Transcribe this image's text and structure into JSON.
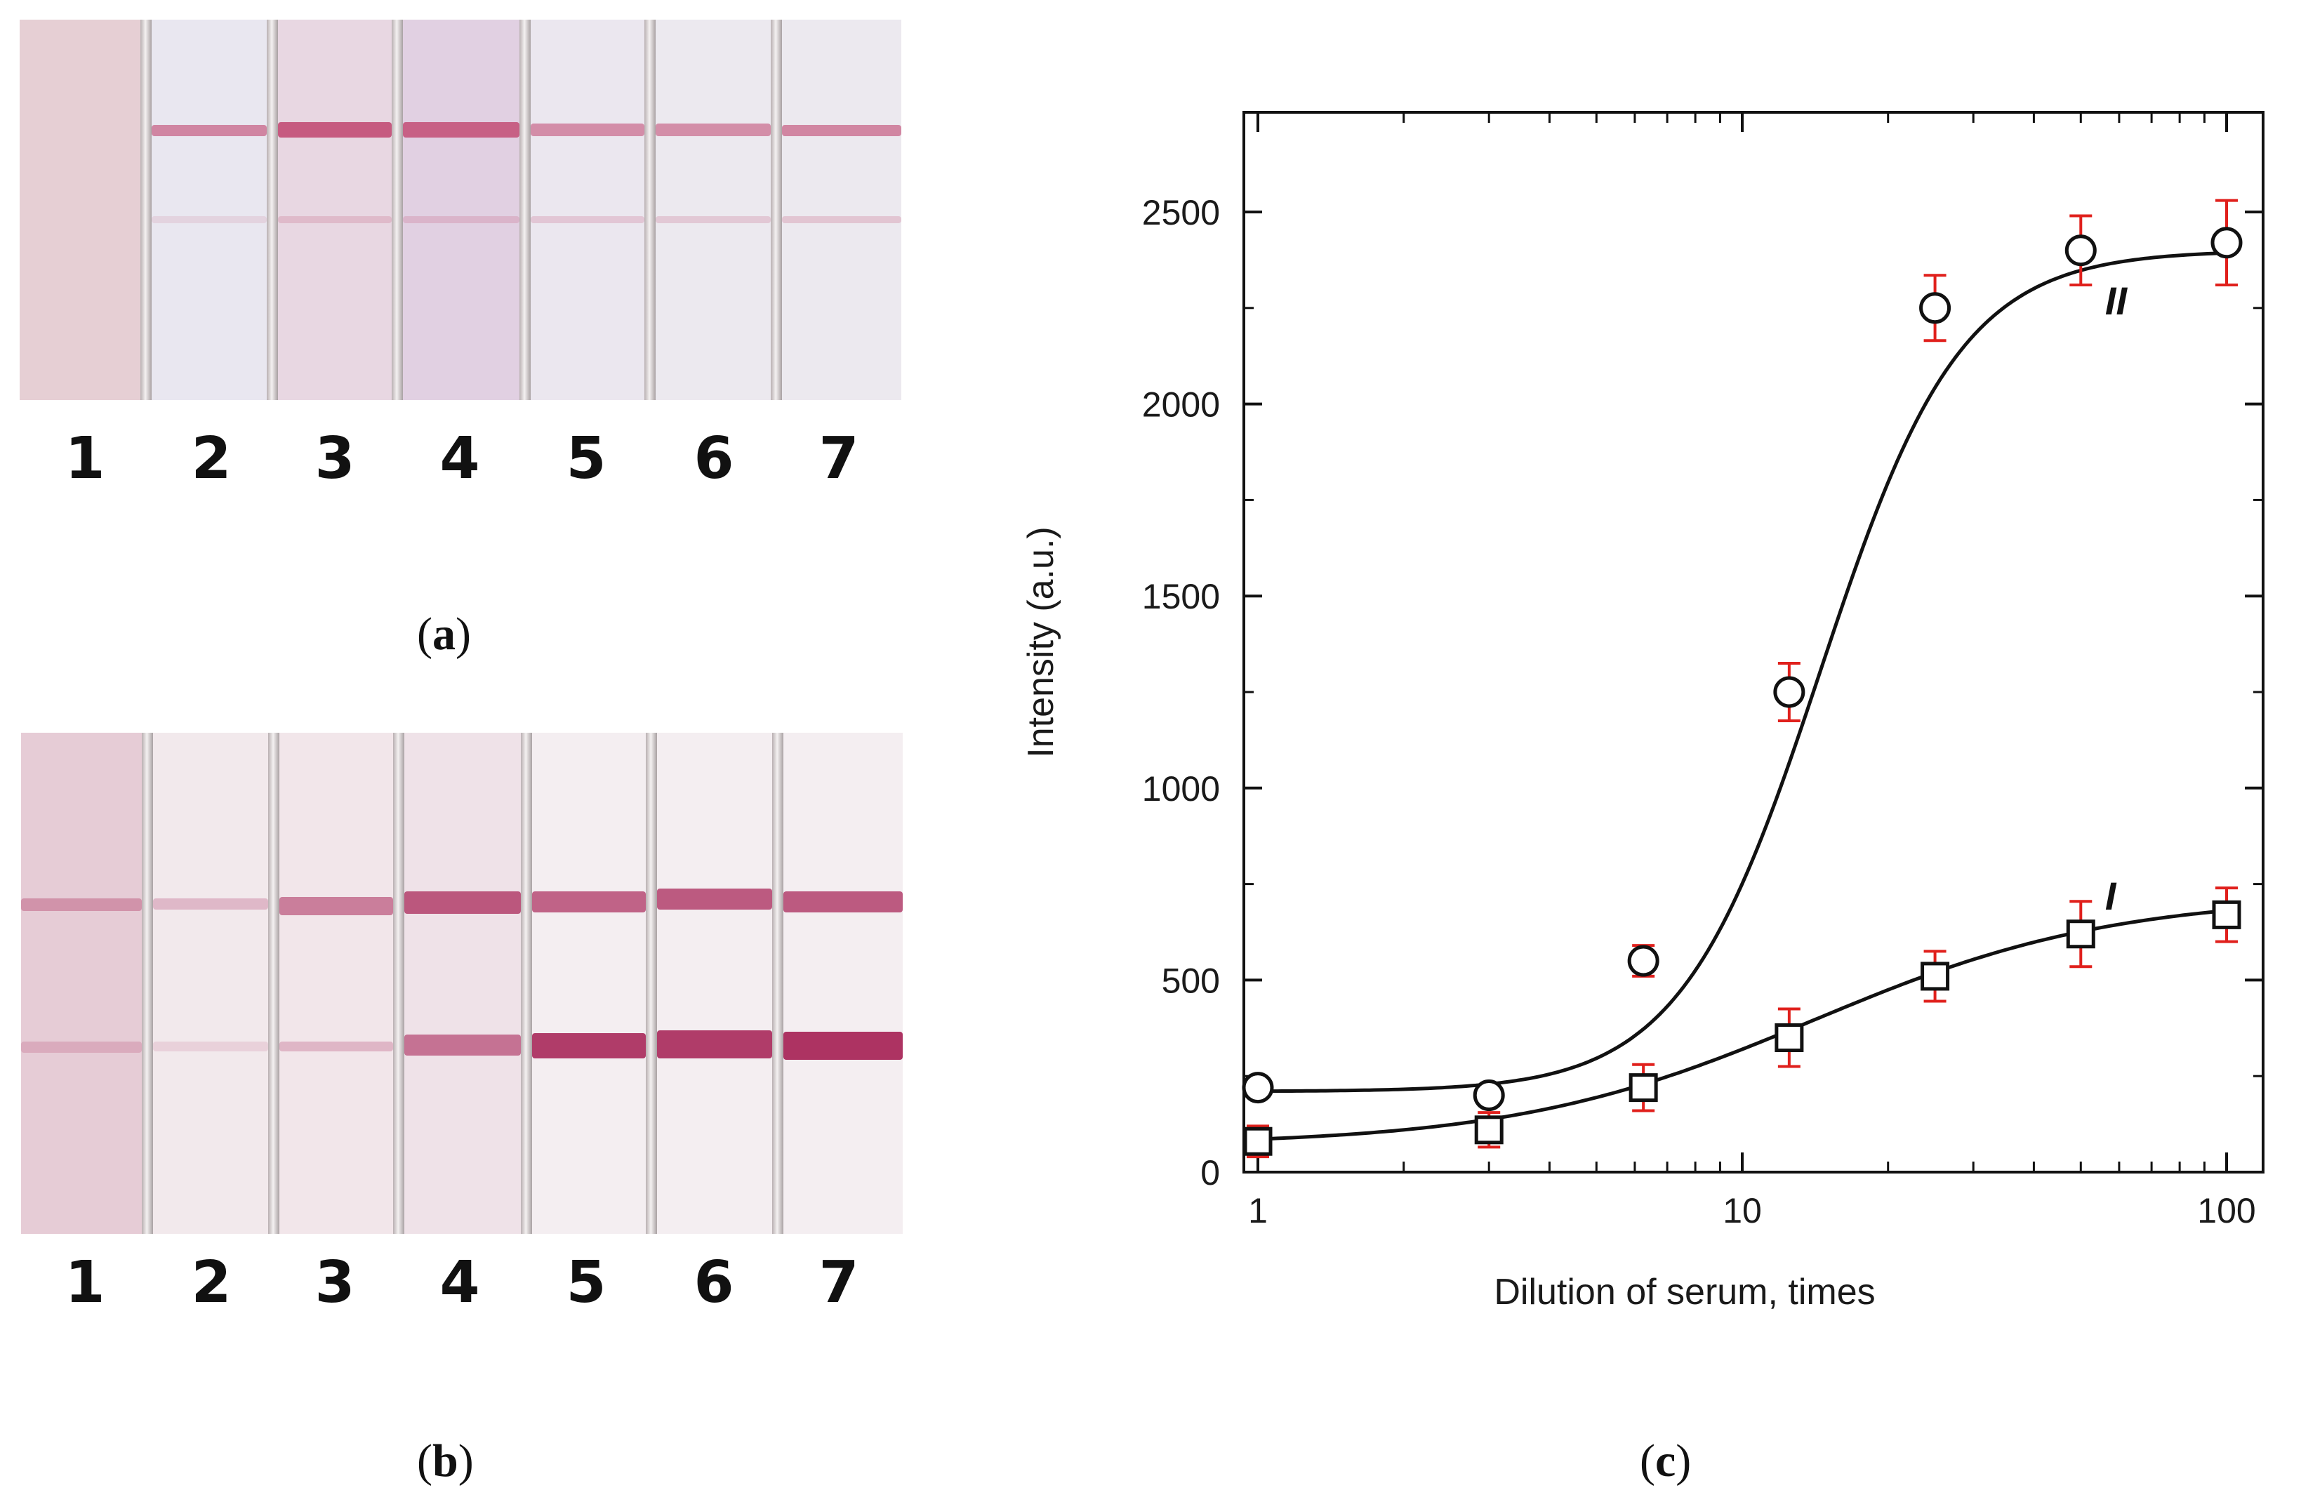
{
  "panel_a": {
    "caption_open": "(",
    "caption_letter": "a",
    "caption_close": ")",
    "lanes": [
      "1",
      "2",
      "3",
      "4",
      "5",
      "6",
      "7"
    ],
    "colors": {
      "band": "#c0446e"
    }
  },
  "panel_b": {
    "caption_open": "(",
    "caption_letter": "b",
    "caption_close": ")",
    "lanes": [
      "1",
      "2",
      "3",
      "4",
      "5",
      "6",
      "7"
    ],
    "colors": {
      "band": "#a9285a"
    }
  },
  "panel_c": {
    "caption_open": "(",
    "caption_letter": "c",
    "caption_close": ")"
  },
  "chart_data": {
    "type": "scatter",
    "title": "",
    "xlabel": "Dilution of serum, times",
    "ylabel": "Intensity (a.u.)",
    "xscale": "log",
    "xlim": [
      1,
      100
    ],
    "ylim": [
      0,
      2700
    ],
    "x_ticks": [
      1,
      10,
      100
    ],
    "x_tick_labels": [
      "1",
      "10",
      "100"
    ],
    "y_ticks": [
      0,
      500,
      1000,
      1500,
      2000,
      2500
    ],
    "y_tick_labels": [
      "0",
      "500",
      "1000",
      "1500",
      "2000",
      "2500"
    ],
    "grid": false,
    "series": [
      {
        "name": "I",
        "label": "I",
        "marker": "square",
        "x": [
          1,
          3,
          6.25,
          12.5,
          25,
          50,
          100
        ],
        "y": [
          80,
          110,
          220,
          350,
          510,
          620,
          670
        ],
        "err": [
          40,
          45,
          60,
          75,
          65,
          85,
          70
        ],
        "fit": {
          "bottom": 70,
          "top": 720,
          "x50": 14,
          "slope": 1.4
        }
      },
      {
        "name": "II",
        "label": "II",
        "marker": "circle",
        "x": [
          1,
          3,
          6.25,
          12.5,
          25,
          50,
          100
        ],
        "y": [
          220,
          200,
          550,
          1250,
          2250,
          2400,
          2420
        ],
        "err": [
          25,
          25,
          40,
          75,
          85,
          90,
          110
        ],
        "fit": {
          "bottom": 210,
          "top": 2400,
          "x50": 14.5,
          "slope": 3.0
        }
      }
    ],
    "colors": {
      "error_bar": "#e0201c",
      "marker": "#111111",
      "curve": "#111111"
    }
  }
}
